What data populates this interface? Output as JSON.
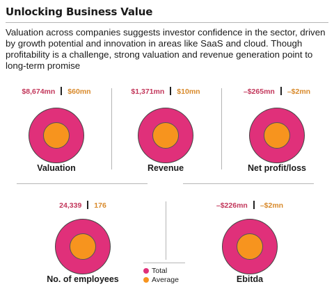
{
  "title": "Unlocking Business Value",
  "subtitle": "Valuation across companies suggests investor confidence in the sector, driven by growth potential and innovation in areas like SaaS and cloud. Though profitability is a challenge, strong valuation and revenue generation point to long-term promise",
  "colors": {
    "total": "#e0307a",
    "average": "#f7941e",
    "total_text": "#c2365a",
    "average_text": "#d8892a"
  },
  "legend": {
    "total": "Total",
    "average": "Average"
  },
  "chart_data": {
    "type": "bubble",
    "series_labels": [
      "Total",
      "Average"
    ],
    "metrics": [
      {
        "label": "Valuation",
        "total_text": "$8,674mn",
        "average_text": "$60mn",
        "total": 8674,
        "average": 60,
        "unit": "mn USD"
      },
      {
        "label": "Revenue",
        "total_text": "$1,371mn",
        "average_text": "$10mn",
        "total": 1371,
        "average": 10,
        "unit": "mn USD"
      },
      {
        "label": "Net profit/loss",
        "total_text": "–$265mn",
        "average_text": "–$2mn",
        "total": -265,
        "average": -2,
        "unit": "mn USD"
      },
      {
        "label": "No. of employees",
        "total_text": "24,339",
        "average_text": "176",
        "total": 24339,
        "average": 176,
        "unit": ""
      },
      {
        "label": "Ebitda",
        "total_text": "–$226mn",
        "average_text": "–$2mn",
        "total": -226,
        "average": -2,
        "unit": "mn USD"
      }
    ]
  }
}
